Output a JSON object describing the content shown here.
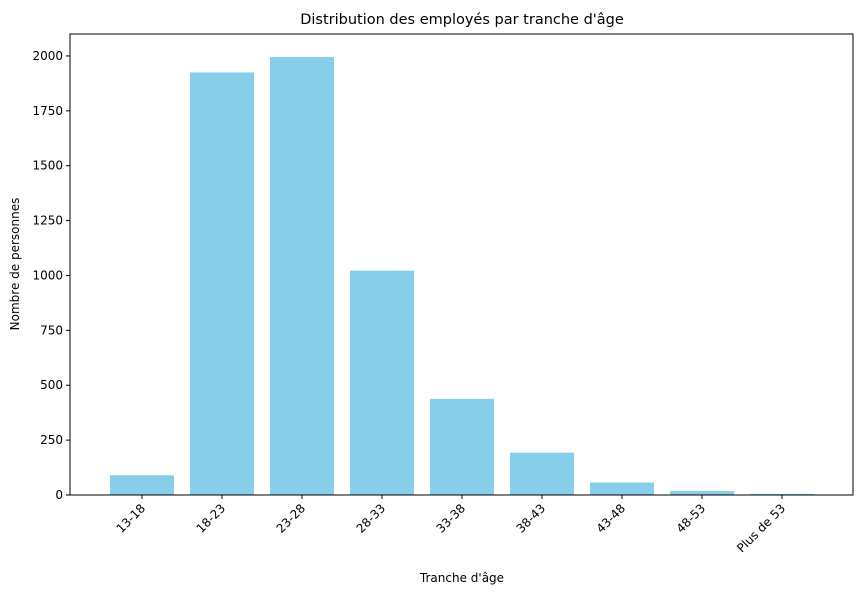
{
  "chart_data": {
    "type": "bar",
    "title": "Distribution des employés par tranche d'âge",
    "xlabel": "Tranche d'âge",
    "ylabel": "Nombre de personnes",
    "categories": [
      "13-18",
      "18-23",
      "23-28",
      "28-33",
      "33-38",
      "38-43",
      "43-48",
      "48-53",
      "Plus de 53"
    ],
    "values": [
      90,
      1925,
      1995,
      1022,
      438,
      193,
      57,
      18,
      5
    ],
    "ylim": [
      0,
      2100
    ],
    "yticks": [
      0,
      250,
      500,
      750,
      1000,
      1250,
      1500,
      1750,
      2000
    ],
    "bar_color": "#87CEEB",
    "grid": false,
    "legend": "none"
  }
}
